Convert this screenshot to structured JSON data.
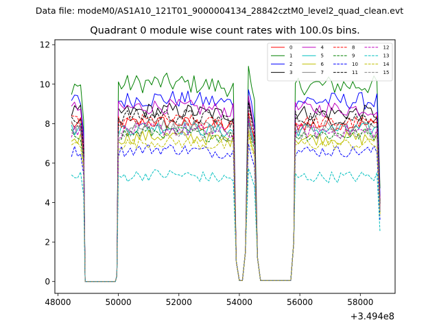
{
  "chart_data": {
    "type": "line",
    "suptitle": "Data file: modeM0/AS1A10_121T01_9000004134_28842cztM0_level2_quad_clean.evt",
    "title": "Quadrant 0 module wise count rates with 100.0s bins.",
    "xlabel": "",
    "ylabel": "",
    "x_offset_label": "+3.494e8",
    "xlim": [
      47900,
      59150
    ],
    "ylim": [
      -0.6,
      12.25
    ],
    "x_ticks": [
      48000,
      50000,
      52000,
      54000,
      56000,
      58000
    ],
    "x_tick_labels": [
      "48000",
      "50000",
      "52000",
      "54000",
      "56000",
      "58000"
    ],
    "y_ticks": [
      0,
      2,
      4,
      6,
      8,
      10,
      12
    ],
    "y_tick_labels": [
      "0",
      "2",
      "4",
      "6",
      "8",
      "10",
      "12"
    ],
    "legend_location": "upper-right",
    "legend_columns": 4,
    "segments": [
      {
        "x_start": 48450,
        "x_end": 48850,
        "step": 100
      },
      {
        "x_start": 50000,
        "x_end": 53850,
        "step": 100
      },
      {
        "x_start": 54300,
        "x_end": 54500,
        "step": 100
      },
      {
        "x_start": 55850,
        "x_end": 58600,
        "step": 100
      }
    ],
    "gap_points": [
      [
        48900,
        0
      ],
      [
        49000,
        0
      ],
      [
        49900,
        0
      ],
      [
        49950,
        0.3
      ],
      [
        53900,
        1.0
      ],
      [
        54000,
        0.05
      ],
      [
        54100,
        0.05
      ],
      [
        54200,
        1.5
      ],
      [
        54600,
        1.2
      ],
      [
        54700,
        0.05
      ],
      [
        55700,
        0.05
      ],
      [
        55800,
        2.0
      ]
    ],
    "end_points": [
      [
        58650,
        3.8
      ]
    ],
    "series": [
      {
        "name": "0",
        "color": "#ff0000",
        "dash": "solid",
        "mean": 7.95,
        "amp": 0.35
      },
      {
        "name": "1",
        "color": "#008000",
        "dash": "solid",
        "mean": 9.95,
        "amp": 0.5
      },
      {
        "name": "2",
        "color": "#0000ff",
        "dash": "solid",
        "mean": 9.15,
        "amp": 0.45
      },
      {
        "name": "3",
        "color": "#000000",
        "dash": "solid",
        "mean": 8.55,
        "amp": 0.4
      },
      {
        "name": "4",
        "color": "#bf00bf",
        "dash": "solid",
        "mean": 8.75,
        "amp": 0.4
      },
      {
        "name": "5",
        "color": "#00bfbf",
        "dash": "solid",
        "mean": 7.7,
        "amp": 0.35
      },
      {
        "name": "6",
        "color": "#bfbf00",
        "dash": "solid",
        "mean": 7.25,
        "amp": 0.35
      },
      {
        "name": "7",
        "color": "#808080",
        "dash": "solid",
        "mean": 7.85,
        "amp": 0.35
      },
      {
        "name": "8",
        "color": "#ff0000",
        "dash": "dashed",
        "mean": 8.05,
        "amp": 0.35
      },
      {
        "name": "9",
        "color": "#008000",
        "dash": "dashed",
        "mean": 7.45,
        "amp": 0.35
      },
      {
        "name": "10",
        "color": "#0000ff",
        "dash": "dashed",
        "mean": 6.6,
        "amp": 0.3
      },
      {
        "name": "11",
        "color": "#000000",
        "dash": "dashed",
        "mean": 8.3,
        "amp": 0.4
      },
      {
        "name": "12",
        "color": "#bf00bf",
        "dash": "dashed",
        "mean": 7.6,
        "amp": 0.35
      },
      {
        "name": "13",
        "color": "#00bfbf",
        "dash": "dashed",
        "mean": 5.3,
        "amp": 0.3
      },
      {
        "name": "14",
        "color": "#bfbf00",
        "dash": "dashed",
        "mean": 6.95,
        "amp": 0.3
      },
      {
        "name": "15",
        "color": "#808080",
        "dash": "dashed",
        "mean": 7.55,
        "amp": 0.35
      }
    ]
  }
}
